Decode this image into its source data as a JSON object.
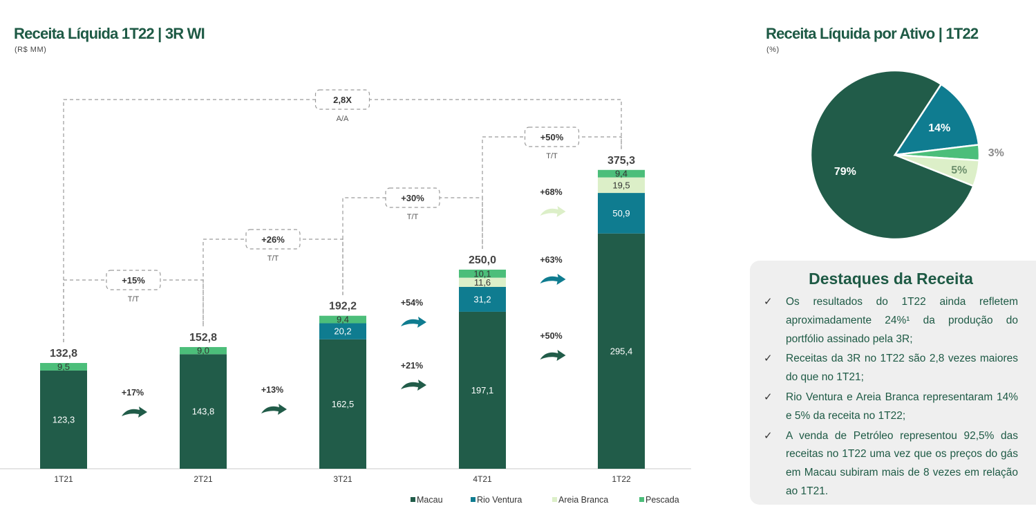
{
  "left_panel": {
    "title": "Receita Líquida 1T22 | 3R WI",
    "unit": "(R$ MM)"
  },
  "right_panel": {
    "title": "Receita Líquida por Ativo | 1T22",
    "unit": "(%)"
  },
  "highlights": {
    "title": "Destaques da Receita",
    "check_glyph": "✓",
    "items": [
      "Os resultados do 1T22 ainda refletem aproximadamente 24%¹ da produção do portfólio assinado pela 3R;",
      "Receitas da 3R no 1T22 são 2,8 vezes maiores do que no 1T21;",
      "Rio Ventura e Areia Branca representaram 14% e 5% da receita no 1T22;",
      "A venda de Petróleo representou 92,5% das receitas no 1T22 uma vez que os preços do gás em Macau subiram mais de 8 vezes em relação ao 1T21."
    ]
  },
  "colors": {
    "Macau": "#215c49",
    "Rio Ventura": "#0f7c90",
    "Areia Branca": "#dcefc8",
    "Pescada": "#4cbe7a",
    "growth_arrow_dark": "#215c49",
    "growth_arrow_teal": "#0f7c90",
    "growth_arrow_light": "#dcefc8"
  },
  "chart_data": [
    {
      "type": "bar",
      "stacked": true,
      "categories": [
        "1T21",
        "2T21",
        "3T21",
        "4T21",
        "1T22"
      ],
      "series": [
        {
          "name": "Macau",
          "values": [
            123.3,
            143.8,
            162.5,
            197.1,
            295.4
          ],
          "labels": [
            "123,3",
            "143,8",
            "162,5",
            "197,1",
            "295,4"
          ]
        },
        {
          "name": "Rio Ventura",
          "values": [
            0,
            0,
            20.2,
            31.2,
            50.9
          ],
          "labels": [
            "",
            "",
            "20,2",
            "31,2",
            "50,9"
          ]
        },
        {
          "name": "Areia Branca",
          "values": [
            0,
            0,
            0,
            11.6,
            19.5
          ],
          "labels": [
            "",
            "",
            "",
            "11,6",
            "19,5"
          ]
        },
        {
          "name": "Pescada",
          "values": [
            9.5,
            9.0,
            9.4,
            10.1,
            9.4
          ],
          "labels": [
            "9,5",
            "9,0",
            "9,4",
            "10,1",
            "9,4"
          ]
        }
      ],
      "totals": [
        132.8,
        152.8,
        192.2,
        250.0,
        375.3
      ],
      "total_labels": [
        "132,8",
        "152,8",
        "192,2",
        "250,0",
        "375,3"
      ],
      "legend": [
        "Macau",
        "Rio Ventura",
        "Areia Branca",
        "Pescada"
      ],
      "legend_position": "bottom-right",
      "growth_arrows": [
        {
          "from": "1T21",
          "to": "2T21",
          "series": "Macau",
          "label": "+17%"
        },
        {
          "from": "2T21",
          "to": "3T21",
          "series": "Macau",
          "label": "+13%"
        },
        {
          "from": "3T21",
          "to": "4T21",
          "series": "Macau",
          "label": "+21%"
        },
        {
          "from": "3T21",
          "to": "4T21",
          "series": "Rio Ventura",
          "label": "+54%"
        },
        {
          "from": "4T21",
          "to": "1T22",
          "series": "Macau",
          "label": "+50%"
        },
        {
          "from": "4T21",
          "to": "1T22",
          "series": "Rio Ventura",
          "label": "+63%"
        },
        {
          "from": "4T21",
          "to": "1T22",
          "series": "Areia Branca",
          "label": "+68%"
        }
      ],
      "comparisons": [
        {
          "from": "1T21",
          "to": "2T21",
          "label": "+15%",
          "sublabel": "T/T"
        },
        {
          "from": "2T21",
          "to": "3T21",
          "label": "+26%",
          "sublabel": "T/T"
        },
        {
          "from": "3T21",
          "to": "4T21",
          "label": "+30%",
          "sublabel": "T/T"
        },
        {
          "from": "4T21",
          "to": "1T22",
          "label": "+50%",
          "sublabel": "T/T"
        },
        {
          "from": "1T21",
          "to": "1T22",
          "label": "2,8X",
          "sublabel": "A/A"
        }
      ]
    },
    {
      "type": "pie",
      "slices": [
        {
          "name": "Macau",
          "value": 79,
          "label": "79%"
        },
        {
          "name": "Rio Ventura",
          "value": 14,
          "label": "14%"
        },
        {
          "name": "Pescada",
          "value": 3,
          "label": "3%"
        },
        {
          "name": "Areia Branca",
          "value": 5,
          "label": "5%"
        }
      ]
    }
  ]
}
